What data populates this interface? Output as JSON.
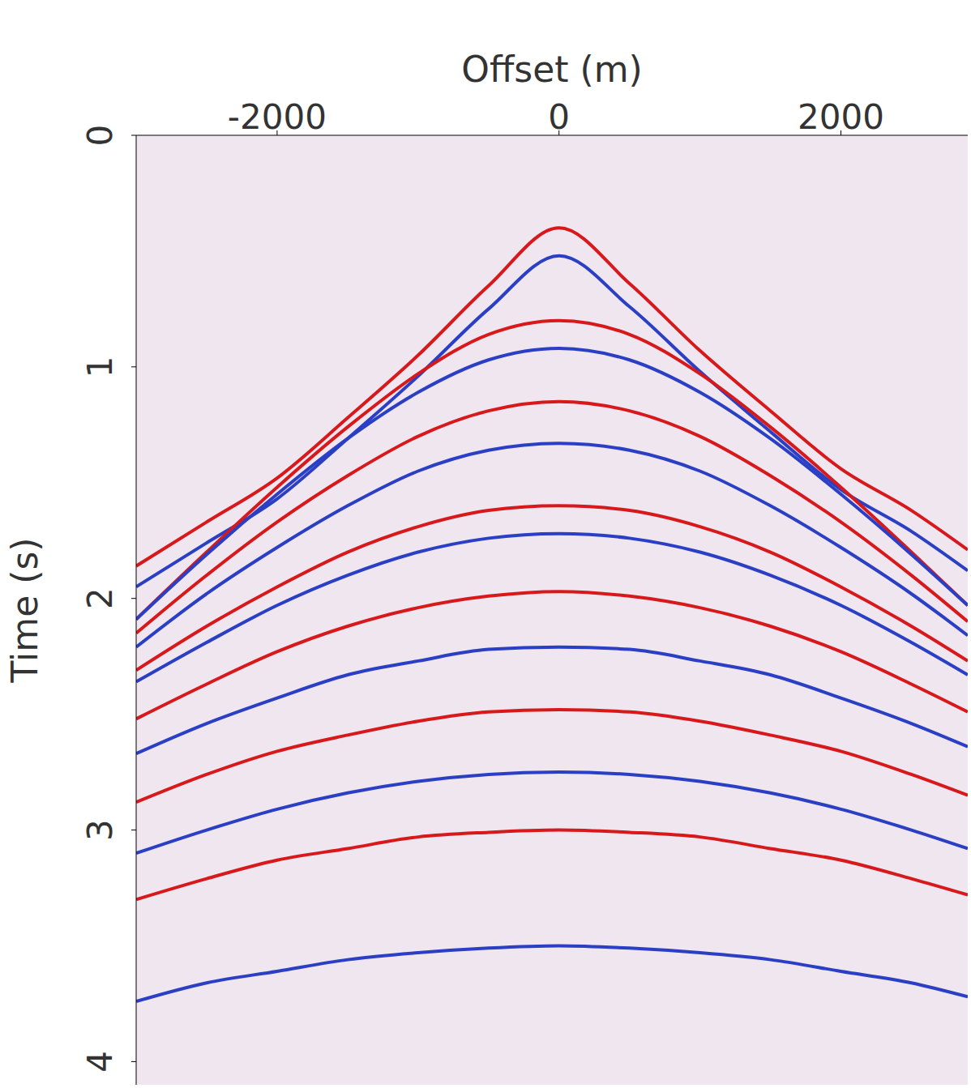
{
  "chart_data": {
    "type": "line",
    "x_label": "Offset (m)",
    "y_label": "Time (s)",
    "x": [
      -3000,
      -2500,
      -2000,
      -1500,
      -1000,
      -500,
      0,
      500,
      1000,
      1500,
      2000,
      2500,
      2900
    ],
    "xlim": [
      -3000,
      2900
    ],
    "xticks": [
      -2000,
      0,
      2000
    ],
    "ylim": [
      0,
      4.1
    ],
    "yticks": [
      0,
      1,
      2,
      3,
      4
    ],
    "grid": false,
    "series": [
      {
        "color": "#d7191c",
        "values": [
          1.86,
          1.67,
          1.48,
          1.22,
          0.95,
          0.65,
          0.4,
          0.64,
          0.93,
          1.19,
          1.44,
          1.62,
          1.79
        ]
      },
      {
        "color": "#2b3fc4",
        "values": [
          1.95,
          1.76,
          1.57,
          1.31,
          1.04,
          0.75,
          0.52,
          0.74,
          1.02,
          1.28,
          1.53,
          1.71,
          1.88
        ]
      },
      {
        "color": "#d7191c",
        "values": [
          2.09,
          1.8,
          1.52,
          1.26,
          1.03,
          0.86,
          0.8,
          0.86,
          1.03,
          1.26,
          1.52,
          1.8,
          2.03
        ]
      },
      {
        "color": "#2b3fc4",
        "values": [
          2.09,
          1.81,
          1.55,
          1.31,
          1.11,
          0.97,
          0.92,
          0.97,
          1.11,
          1.31,
          1.55,
          1.81,
          2.03
        ]
      },
      {
        "color": "#d7191c",
        "values": [
          2.15,
          1.9,
          1.67,
          1.47,
          1.3,
          1.19,
          1.15,
          1.19,
          1.3,
          1.47,
          1.67,
          1.9,
          2.1
        ]
      },
      {
        "color": "#2b3fc4",
        "values": [
          2.21,
          1.98,
          1.78,
          1.6,
          1.45,
          1.36,
          1.33,
          1.36,
          1.45,
          1.6,
          1.78,
          1.98,
          2.16
        ]
      },
      {
        "color": "#d7191c",
        "values": [
          2.31,
          2.12,
          1.95,
          1.8,
          1.69,
          1.62,
          1.6,
          1.62,
          1.69,
          1.8,
          1.95,
          2.12,
          2.27
        ]
      },
      {
        "color": "#2b3fc4",
        "values": [
          2.36,
          2.19,
          2.03,
          1.9,
          1.8,
          1.74,
          1.72,
          1.74,
          1.8,
          1.9,
          2.03,
          2.19,
          2.33
        ]
      },
      {
        "color": "#d7191c",
        "values": [
          2.52,
          2.37,
          2.23,
          2.12,
          2.04,
          1.99,
          1.97,
          1.99,
          2.04,
          2.12,
          2.23,
          2.37,
          2.49
        ]
      },
      {
        "color": "#2b3fc4",
        "values": [
          2.67,
          2.54,
          2.43,
          2.33,
          2.27,
          2.22,
          2.21,
          2.22,
          2.27,
          2.33,
          2.43,
          2.54,
          2.64
        ]
      },
      {
        "color": "#d7191c",
        "values": [
          2.88,
          2.76,
          2.66,
          2.59,
          2.53,
          2.49,
          2.48,
          2.49,
          2.53,
          2.59,
          2.66,
          2.76,
          2.85
        ]
      },
      {
        "color": "#2b3fc4",
        "values": [
          3.1,
          3.0,
          2.91,
          2.84,
          2.79,
          2.76,
          2.75,
          2.76,
          2.79,
          2.84,
          2.91,
          3.0,
          3.08
        ]
      },
      {
        "color": "#d7191c",
        "values": [
          3.3,
          3.21,
          3.13,
          3.08,
          3.03,
          3.01,
          3.0,
          3.01,
          3.03,
          3.08,
          3.13,
          3.21,
          3.28
        ]
      },
      {
        "color": "#2b3fc4",
        "values": [
          3.74,
          3.66,
          3.61,
          3.56,
          3.53,
          3.51,
          3.5,
          3.51,
          3.53,
          3.56,
          3.61,
          3.66,
          3.72
        ]
      }
    ]
  }
}
